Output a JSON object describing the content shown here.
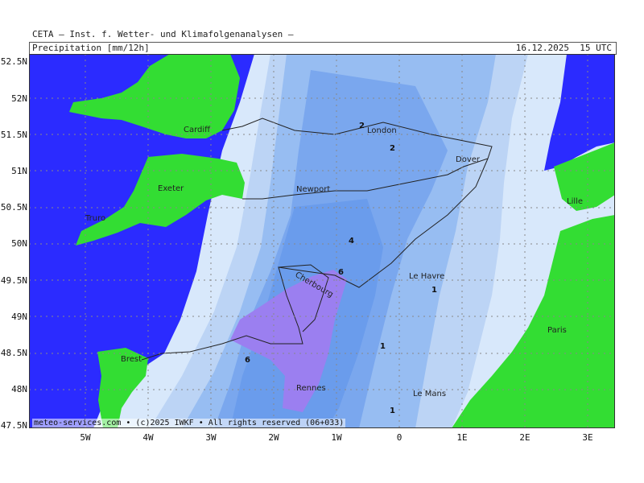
{
  "header": {
    "title": "CETA — Inst. f. Wetter- und Klimafolgenanalysen —",
    "parameter": "Precipitation [mm/12h]",
    "valid_time": "16.12.2025  15 UTC"
  },
  "footer": {
    "copyright": "meteo-services.com • (c)2025 IWKF • All rights reserved (06+033)"
  },
  "axes": {
    "lat_ticks": [
      "52.5N",
      "52N",
      "51.5N",
      "51N",
      "50.5N",
      "50N",
      "49.5N",
      "49N",
      "48.5N",
      "48N",
      "47.5N"
    ],
    "lon_ticks": [
      "5W",
      "4W",
      "3W",
      "2W",
      "1W",
      "0",
      "1E",
      "2E",
      "3E"
    ]
  },
  "cities": [
    "Cardiff",
    "London",
    "Dover",
    "Exeter",
    "Newport",
    "Lille",
    "Truro",
    "Cherbourg",
    "Le Havre",
    "Paris",
    "Brest",
    "Rennes",
    "Le Mans"
  ],
  "contour_labels": [
    "2",
    "2",
    "4",
    "6",
    "6",
    "1",
    "1",
    "1"
  ],
  "colors": {
    "land_dry": "#33dd33",
    "sea": "#2b2bff",
    "precip_0_5": "#d8e8fb",
    "precip_1": "#bcd4f5",
    "precip_2": "#97bdf2",
    "precip_3": "#7aa7ee",
    "precip_4": "#6a9cec",
    "precip_6": "#9b7ff0"
  }
}
